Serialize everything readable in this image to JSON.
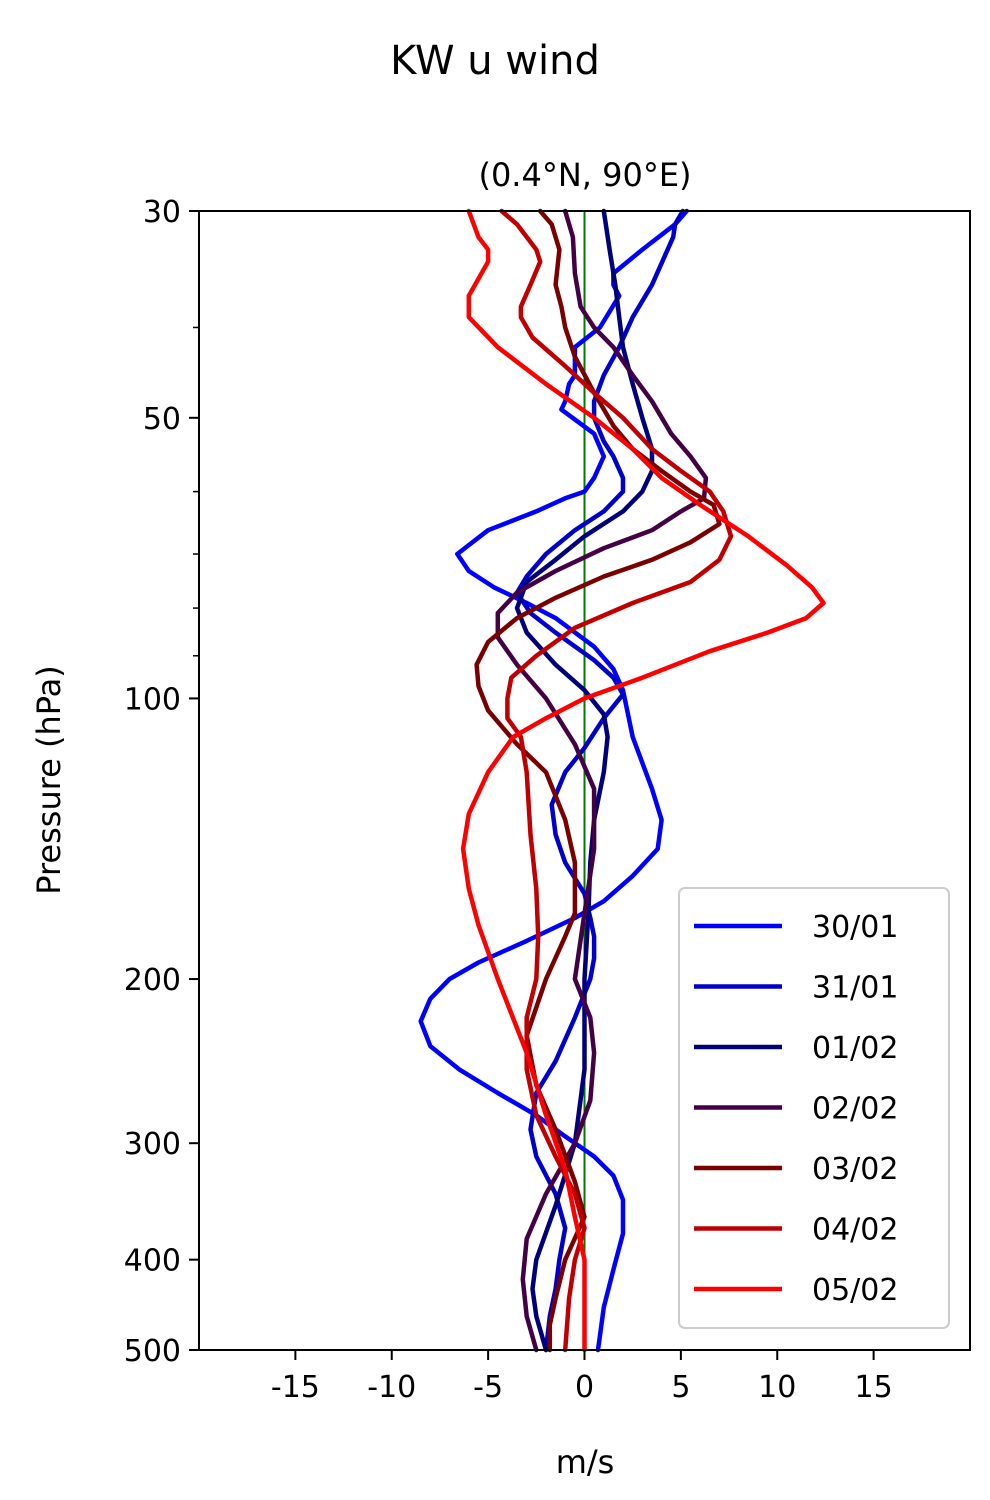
{
  "chart_data": {
    "type": "line",
    "title": "KW u wind",
    "subtitle": "(0.4°N, 90°E)",
    "xlabel": "m/s",
    "ylabel": "Pressure (hPa)",
    "xlim": [
      -20,
      20
    ],
    "ylim": [
      500,
      30
    ],
    "yscale": "log",
    "xticks": [
      -15,
      -10,
      -5,
      0,
      5,
      10,
      15
    ],
    "xtick_labels": [
      "-15",
      "-10",
      "-5",
      "0",
      "5",
      "10",
      "15"
    ],
    "yticks": [
      30,
      50,
      100,
      200,
      300,
      400,
      500
    ],
    "ytick_labels": [
      "30",
      "50",
      "100",
      "200",
      "300",
      "400",
      "500"
    ],
    "y_minor_ticks": [
      40,
      60,
      70,
      80,
      90
    ],
    "grid": false,
    "legend_position": "lower-right",
    "reference_line": {
      "x": 0,
      "color": "#007a00"
    },
    "series": [
      {
        "name": "30/01",
        "color": "#0000ff",
        "points": [
          [
            5.3,
            30
          ],
          [
            4.7,
            31
          ],
          [
            3.0,
            33
          ],
          [
            1.5,
            35
          ],
          [
            1.5,
            36
          ],
          [
            1.8,
            37
          ],
          [
            0.8,
            40
          ],
          [
            -0.5,
            42
          ],
          [
            -0.5,
            45
          ],
          [
            -0.8,
            46
          ],
          [
            -1.0,
            48
          ],
          [
            -1.2,
            49
          ],
          [
            0.5,
            52
          ],
          [
            1.0,
            55
          ],
          [
            0.5,
            58
          ],
          [
            0.0,
            60
          ],
          [
            -1.0,
            61
          ],
          [
            -2.5,
            63
          ],
          [
            -5.0,
            66
          ],
          [
            -6.6,
            70
          ],
          [
            -6.0,
            73
          ],
          [
            -4.7,
            76
          ],
          [
            -3.0,
            79
          ],
          [
            -1.5,
            82
          ],
          [
            0.5,
            88
          ],
          [
            1.5,
            93
          ],
          [
            2.0,
            98
          ],
          [
            2.5,
            110
          ],
          [
            3.5,
            125
          ],
          [
            4.0,
            135
          ],
          [
            3.8,
            145
          ],
          [
            2.5,
            155
          ],
          [
            1.0,
            165
          ],
          [
            -0.5,
            172
          ],
          [
            -3.0,
            182
          ],
          [
            -5.5,
            192
          ],
          [
            -7.0,
            200
          ],
          [
            -8.0,
            210
          ],
          [
            -8.5,
            222
          ],
          [
            -8.0,
            236
          ],
          [
            -6.5,
            250
          ],
          [
            -4.5,
            265
          ],
          [
            -2.5,
            280
          ],
          [
            -1.0,
            295
          ],
          [
            0.5,
            310
          ],
          [
            1.5,
            325
          ],
          [
            2.0,
            345
          ],
          [
            2.0,
            375
          ],
          [
            1.5,
            410
          ],
          [
            1.0,
            450
          ],
          [
            0.7,
            500
          ]
        ]
      },
      {
        "name": "31/01",
        "color": "#0000cc",
        "points": [
          [
            5.1,
            30
          ],
          [
            4.7,
            31
          ],
          [
            4.6,
            32
          ],
          [
            3.5,
            36
          ],
          [
            2.5,
            39
          ],
          [
            1.8,
            42
          ],
          [
            1.0,
            45
          ],
          [
            0.5,
            48
          ],
          [
            0.5,
            50
          ],
          [
            1.0,
            53
          ],
          [
            1.5,
            55
          ],
          [
            2.0,
            58
          ],
          [
            2.0,
            60
          ],
          [
            1.0,
            63
          ],
          [
            -0.5,
            66
          ],
          [
            -2.0,
            70
          ],
          [
            -3.0,
            74
          ],
          [
            -3.5,
            77
          ],
          [
            -2.8,
            81
          ],
          [
            -1.5,
            85
          ],
          [
            0.5,
            91
          ],
          [
            1.5,
            95
          ],
          [
            2.0,
            99
          ],
          [
            1.0,
            105
          ],
          [
            0.0,
            113
          ],
          [
            -1.0,
            120
          ],
          [
            -1.7,
            130
          ],
          [
            -1.5,
            140
          ],
          [
            -1.0,
            150
          ],
          [
            0.0,
            162
          ],
          [
            0.3,
            172
          ],
          [
            0.5,
            180
          ],
          [
            0.5,
            190
          ],
          [
            0.3,
            200
          ],
          [
            -0.5,
            220
          ],
          [
            -1.5,
            245
          ],
          [
            -2.5,
            265
          ],
          [
            -2.8,
            290
          ],
          [
            -2.5,
            310
          ],
          [
            -1.5,
            340
          ],
          [
            -1.0,
            370
          ],
          [
            -1.3,
            400
          ],
          [
            -1.5,
            430
          ],
          [
            -1.8,
            460
          ],
          [
            -2.0,
            500
          ]
        ]
      },
      {
        "name": "01/02",
        "color": "#00007a",
        "points": [
          [
            1.0,
            30
          ],
          [
            1.3,
            33
          ],
          [
            1.6,
            36
          ],
          [
            1.8,
            39
          ],
          [
            2.0,
            42
          ],
          [
            2.5,
            46
          ],
          [
            3.0,
            50
          ],
          [
            3.5,
            54
          ],
          [
            3.5,
            57
          ],
          [
            3.0,
            60
          ],
          [
            2.0,
            63
          ],
          [
            0.0,
            67
          ],
          [
            -1.5,
            71
          ],
          [
            -3.0,
            75
          ],
          [
            -3.5,
            80
          ],
          [
            -3.0,
            85
          ],
          [
            -1.5,
            92
          ],
          [
            0.0,
            98
          ],
          [
            1.0,
            104
          ],
          [
            1.2,
            110
          ],
          [
            1.0,
            120
          ],
          [
            0.5,
            135
          ],
          [
            0.3,
            150
          ],
          [
            0.2,
            170
          ],
          [
            0.0,
            200
          ],
          [
            0.0,
            250
          ],
          [
            -0.5,
            300
          ],
          [
            -1.5,
            350
          ],
          [
            -2.5,
            400
          ],
          [
            -2.7,
            430
          ],
          [
            -2.5,
            460
          ],
          [
            -2.0,
            500
          ]
        ]
      },
      {
        "name": "02/02",
        "color": "#440044",
        "points": [
          [
            -1.0,
            30
          ],
          [
            -0.6,
            32
          ],
          [
            -0.5,
            35
          ],
          [
            -0.2,
            38
          ],
          [
            0.5,
            40
          ],
          [
            1.5,
            42
          ],
          [
            2.5,
            45
          ],
          [
            3.5,
            48
          ],
          [
            4.5,
            52
          ],
          [
            5.5,
            55
          ],
          [
            6.3,
            58
          ],
          [
            6.2,
            61
          ],
          [
            5.0,
            63
          ],
          [
            3.5,
            66
          ],
          [
            1.0,
            69
          ],
          [
            -1.5,
            73
          ],
          [
            -3.5,
            77
          ],
          [
            -4.5,
            81
          ],
          [
            -4.5,
            86
          ],
          [
            -3.5,
            92
          ],
          [
            -2.0,
            100
          ],
          [
            -0.5,
            112
          ],
          [
            0.5,
            125
          ],
          [
            0.5,
            145
          ],
          [
            0.0,
            170
          ],
          [
            -0.5,
            200
          ],
          [
            0.3,
            220
          ],
          [
            0.5,
            240
          ],
          [
            0.3,
            270
          ],
          [
            -0.5,
            300
          ],
          [
            -2.0,
            340
          ],
          [
            -3.0,
            380
          ],
          [
            -3.2,
            420
          ],
          [
            -3.0,
            460
          ],
          [
            -2.5,
            500
          ]
        ]
      },
      {
        "name": "03/02",
        "color": "#7a0000",
        "points": [
          [
            -2.3,
            30
          ],
          [
            -1.7,
            31
          ],
          [
            -1.3,
            33
          ],
          [
            -1.5,
            36
          ],
          [
            -1.2,
            38
          ],
          [
            -1.0,
            40
          ],
          [
            -0.5,
            43
          ],
          [
            0.5,
            47
          ],
          [
            1.5,
            51
          ],
          [
            2.5,
            54
          ],
          [
            4.0,
            57
          ],
          [
            5.5,
            60
          ],
          [
            6.7,
            62
          ],
          [
            7.0,
            65
          ],
          [
            5.5,
            68
          ],
          [
            3.5,
            71
          ],
          [
            1.0,
            74
          ],
          [
            -1.5,
            78
          ],
          [
            -3.5,
            82
          ],
          [
            -5.0,
            87
          ],
          [
            -5.6,
            92
          ],
          [
            -5.5,
            97
          ],
          [
            -5.0,
            103
          ],
          [
            -3.5,
            112
          ],
          [
            -2.0,
            120
          ],
          [
            -1.0,
            135
          ],
          [
            -0.5,
            150
          ],
          [
            -0.5,
            170
          ],
          [
            -1.0,
            180
          ],
          [
            -2.0,
            200
          ],
          [
            -3.0,
            230
          ],
          [
            -2.5,
            260
          ],
          [
            -1.5,
            290
          ],
          [
            -0.5,
            330
          ],
          [
            0.0,
            360
          ],
          [
            -1.0,
            400
          ],
          [
            -1.5,
            440
          ],
          [
            -1.8,
            470
          ],
          [
            -1.8,
            500
          ]
        ]
      },
      {
        "name": "04/02",
        "color": "#c00000",
        "points": [
          [
            -4.3,
            30
          ],
          [
            -3.5,
            31
          ],
          [
            -2.5,
            33
          ],
          [
            -2.3,
            34
          ],
          [
            -2.8,
            36
          ],
          [
            -3.3,
            38
          ],
          [
            -3.3,
            39
          ],
          [
            -2.7,
            41
          ],
          [
            -1.0,
            44
          ],
          [
            0.5,
            47
          ],
          [
            2.0,
            50
          ],
          [
            3.5,
            54
          ],
          [
            5.0,
            57
          ],
          [
            6.5,
            60
          ],
          [
            7.2,
            63
          ],
          [
            7.6,
            67
          ],
          [
            7.0,
            71
          ],
          [
            5.5,
            75
          ],
          [
            2.5,
            79
          ],
          [
            -0.5,
            84
          ],
          [
            -2.5,
            90
          ],
          [
            -3.8,
            95
          ],
          [
            -4.0,
            100
          ],
          [
            -4.0,
            105
          ],
          [
            -3.3,
            110
          ],
          [
            -3.0,
            120
          ],
          [
            -2.8,
            140
          ],
          [
            -2.5,
            160
          ],
          [
            -2.4,
            180
          ],
          [
            -2.5,
            200
          ],
          [
            -3.0,
            220
          ],
          [
            -3.0,
            250
          ],
          [
            -2.5,
            280
          ],
          [
            -1.5,
            310
          ],
          [
            -0.5,
            340
          ],
          [
            0.0,
            370
          ],
          [
            -0.5,
            400
          ],
          [
            -0.8,
            440
          ],
          [
            -1.0,
            500
          ]
        ]
      },
      {
        "name": "05/02",
        "color": "#ff0000",
        "points": [
          [
            -6.0,
            30
          ],
          [
            -5.5,
            32
          ],
          [
            -5.0,
            33
          ],
          [
            -5.0,
            34
          ],
          [
            -6.0,
            37
          ],
          [
            -6.0,
            39
          ],
          [
            -4.5,
            42
          ],
          [
            -2.0,
            46
          ],
          [
            0.5,
            50
          ],
          [
            2.5,
            54
          ],
          [
            4.0,
            58
          ],
          [
            6.0,
            62
          ],
          [
            8.5,
            67
          ],
          [
            10.5,
            72
          ],
          [
            11.8,
            76
          ],
          [
            12.4,
            79
          ],
          [
            11.5,
            82
          ],
          [
            9.5,
            85
          ],
          [
            6.5,
            89
          ],
          [
            3.0,
            95
          ],
          [
            0.0,
            100
          ],
          [
            -2.0,
            105
          ],
          [
            -3.7,
            110
          ],
          [
            -5.0,
            120
          ],
          [
            -6.0,
            133
          ],
          [
            -6.3,
            145
          ],
          [
            -6.0,
            160
          ],
          [
            -5.5,
            175
          ],
          [
            -4.5,
            200
          ],
          [
            -3.0,
            240
          ],
          [
            -2.0,
            280
          ],
          [
            -1.0,
            320
          ],
          [
            -0.5,
            360
          ],
          [
            0.0,
            400
          ],
          [
            0.0,
            450
          ],
          [
            0.0,
            500
          ]
        ]
      }
    ]
  }
}
